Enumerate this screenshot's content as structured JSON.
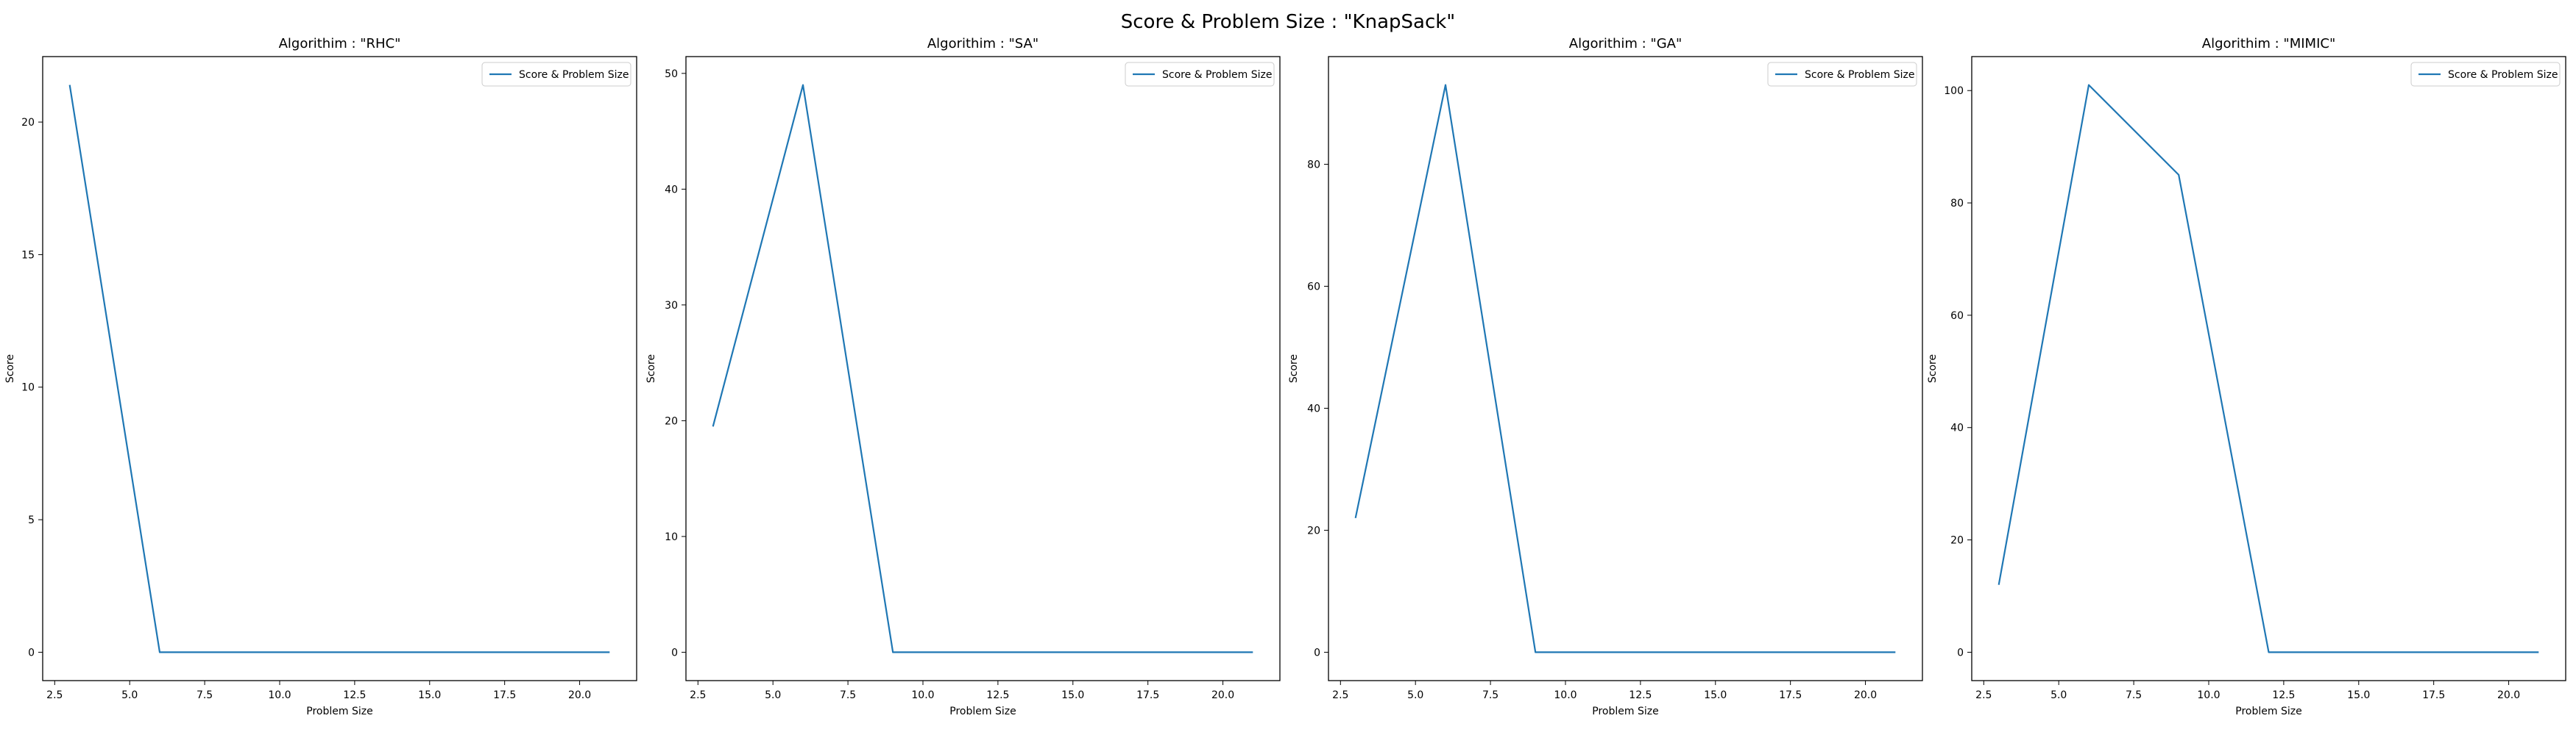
{
  "figure": {
    "suptitle": "Score & Problem Size : \"KnapSack\""
  },
  "colors": {
    "line": "#1f77b4",
    "axes": "#000000",
    "legend_border": "#cccccc",
    "background": "#ffffff"
  },
  "chart_data": [
    {
      "type": "line",
      "title": "Algorithim : \"RHC\"",
      "xlabel": "Problem Size",
      "ylabel": "Score",
      "legend_position": "top-right",
      "grid": false,
      "xlim": [
        2.1,
        21.9
      ],
      "ylim": [
        -1.07,
        22.47
      ],
      "xticks": [
        2.5,
        5.0,
        7.5,
        10.0,
        12.5,
        15.0,
        17.5,
        20.0
      ],
      "xtick_labels": [
        "2.5",
        "5.0",
        "7.5",
        "10.0",
        "12.5",
        "15.0",
        "17.5",
        "20.0"
      ],
      "yticks": [
        0,
        5,
        10,
        15,
        20
      ],
      "ytick_labels": [
        "0",
        "5",
        "10",
        "15",
        "20"
      ],
      "series": [
        {
          "name": "Score & Problem Size",
          "x": [
            3,
            6,
            9,
            12,
            15,
            18,
            21
          ],
          "y": [
            21.4,
            0,
            0,
            0,
            0,
            0,
            0
          ]
        }
      ]
    },
    {
      "type": "line",
      "title": "Algorithim : \"SA\"",
      "xlabel": "Problem Size",
      "ylabel": "Score",
      "legend_position": "top-right",
      "grid": false,
      "xlim": [
        2.1,
        21.9
      ],
      "ylim": [
        -2.45,
        51.45
      ],
      "xticks": [
        2.5,
        5.0,
        7.5,
        10.0,
        12.5,
        15.0,
        17.5,
        20.0
      ],
      "xtick_labels": [
        "2.5",
        "5.0",
        "7.5",
        "10.0",
        "12.5",
        "15.0",
        "17.5",
        "20.0"
      ],
      "yticks": [
        0,
        10,
        20,
        30,
        40,
        50
      ],
      "ytick_labels": [
        "0",
        "10",
        "20",
        "30",
        "40",
        "50"
      ],
      "series": [
        {
          "name": "Score & Problem Size",
          "x": [
            3,
            6,
            9,
            12,
            15,
            18,
            21
          ],
          "y": [
            19.5,
            49,
            0,
            0,
            0,
            0,
            0
          ]
        }
      ]
    },
    {
      "type": "line",
      "title": "Algorithim : \"GA\"",
      "xlabel": "Problem Size",
      "ylabel": "Score",
      "legend_position": "top-right",
      "grid": false,
      "xlim": [
        2.1,
        21.9
      ],
      "ylim": [
        -4.65,
        97.65
      ],
      "xticks": [
        2.5,
        5.0,
        7.5,
        10.0,
        12.5,
        15.0,
        17.5,
        20.0
      ],
      "xtick_labels": [
        "2.5",
        "5.0",
        "7.5",
        "10.0",
        "12.5",
        "15.0",
        "17.5",
        "20.0"
      ],
      "yticks": [
        0,
        20,
        40,
        60,
        80
      ],
      "ytick_labels": [
        "0",
        "20",
        "40",
        "60",
        "80"
      ],
      "series": [
        {
          "name": "Score & Problem Size",
          "x": [
            3,
            6,
            9,
            12,
            15,
            18,
            21
          ],
          "y": [
            22,
            93,
            0,
            0,
            0,
            0,
            0
          ]
        }
      ]
    },
    {
      "type": "line",
      "title": "Algorithim : \"MIMIC\"",
      "xlabel": "Problem Size",
      "ylabel": "Score",
      "legend_position": "top-right",
      "grid": false,
      "xlim": [
        2.1,
        21.9
      ],
      "ylim": [
        -5.05,
        106.05
      ],
      "xticks": [
        2.5,
        5.0,
        7.5,
        10.0,
        12.5,
        15.0,
        17.5,
        20.0
      ],
      "xtick_labels": [
        "2.5",
        "5.0",
        "7.5",
        "10.0",
        "12.5",
        "15.0",
        "17.5",
        "20.0"
      ],
      "yticks": [
        0,
        20,
        40,
        60,
        80,
        100
      ],
      "ytick_labels": [
        "0",
        "20",
        "40",
        "60",
        "80",
        "100"
      ],
      "series": [
        {
          "name": "Score & Problem Size",
          "x": [
            3,
            6,
            9,
            12,
            15,
            18,
            21
          ],
          "y": [
            12,
            101,
            85,
            0,
            0,
            0,
            0
          ]
        }
      ]
    }
  ]
}
